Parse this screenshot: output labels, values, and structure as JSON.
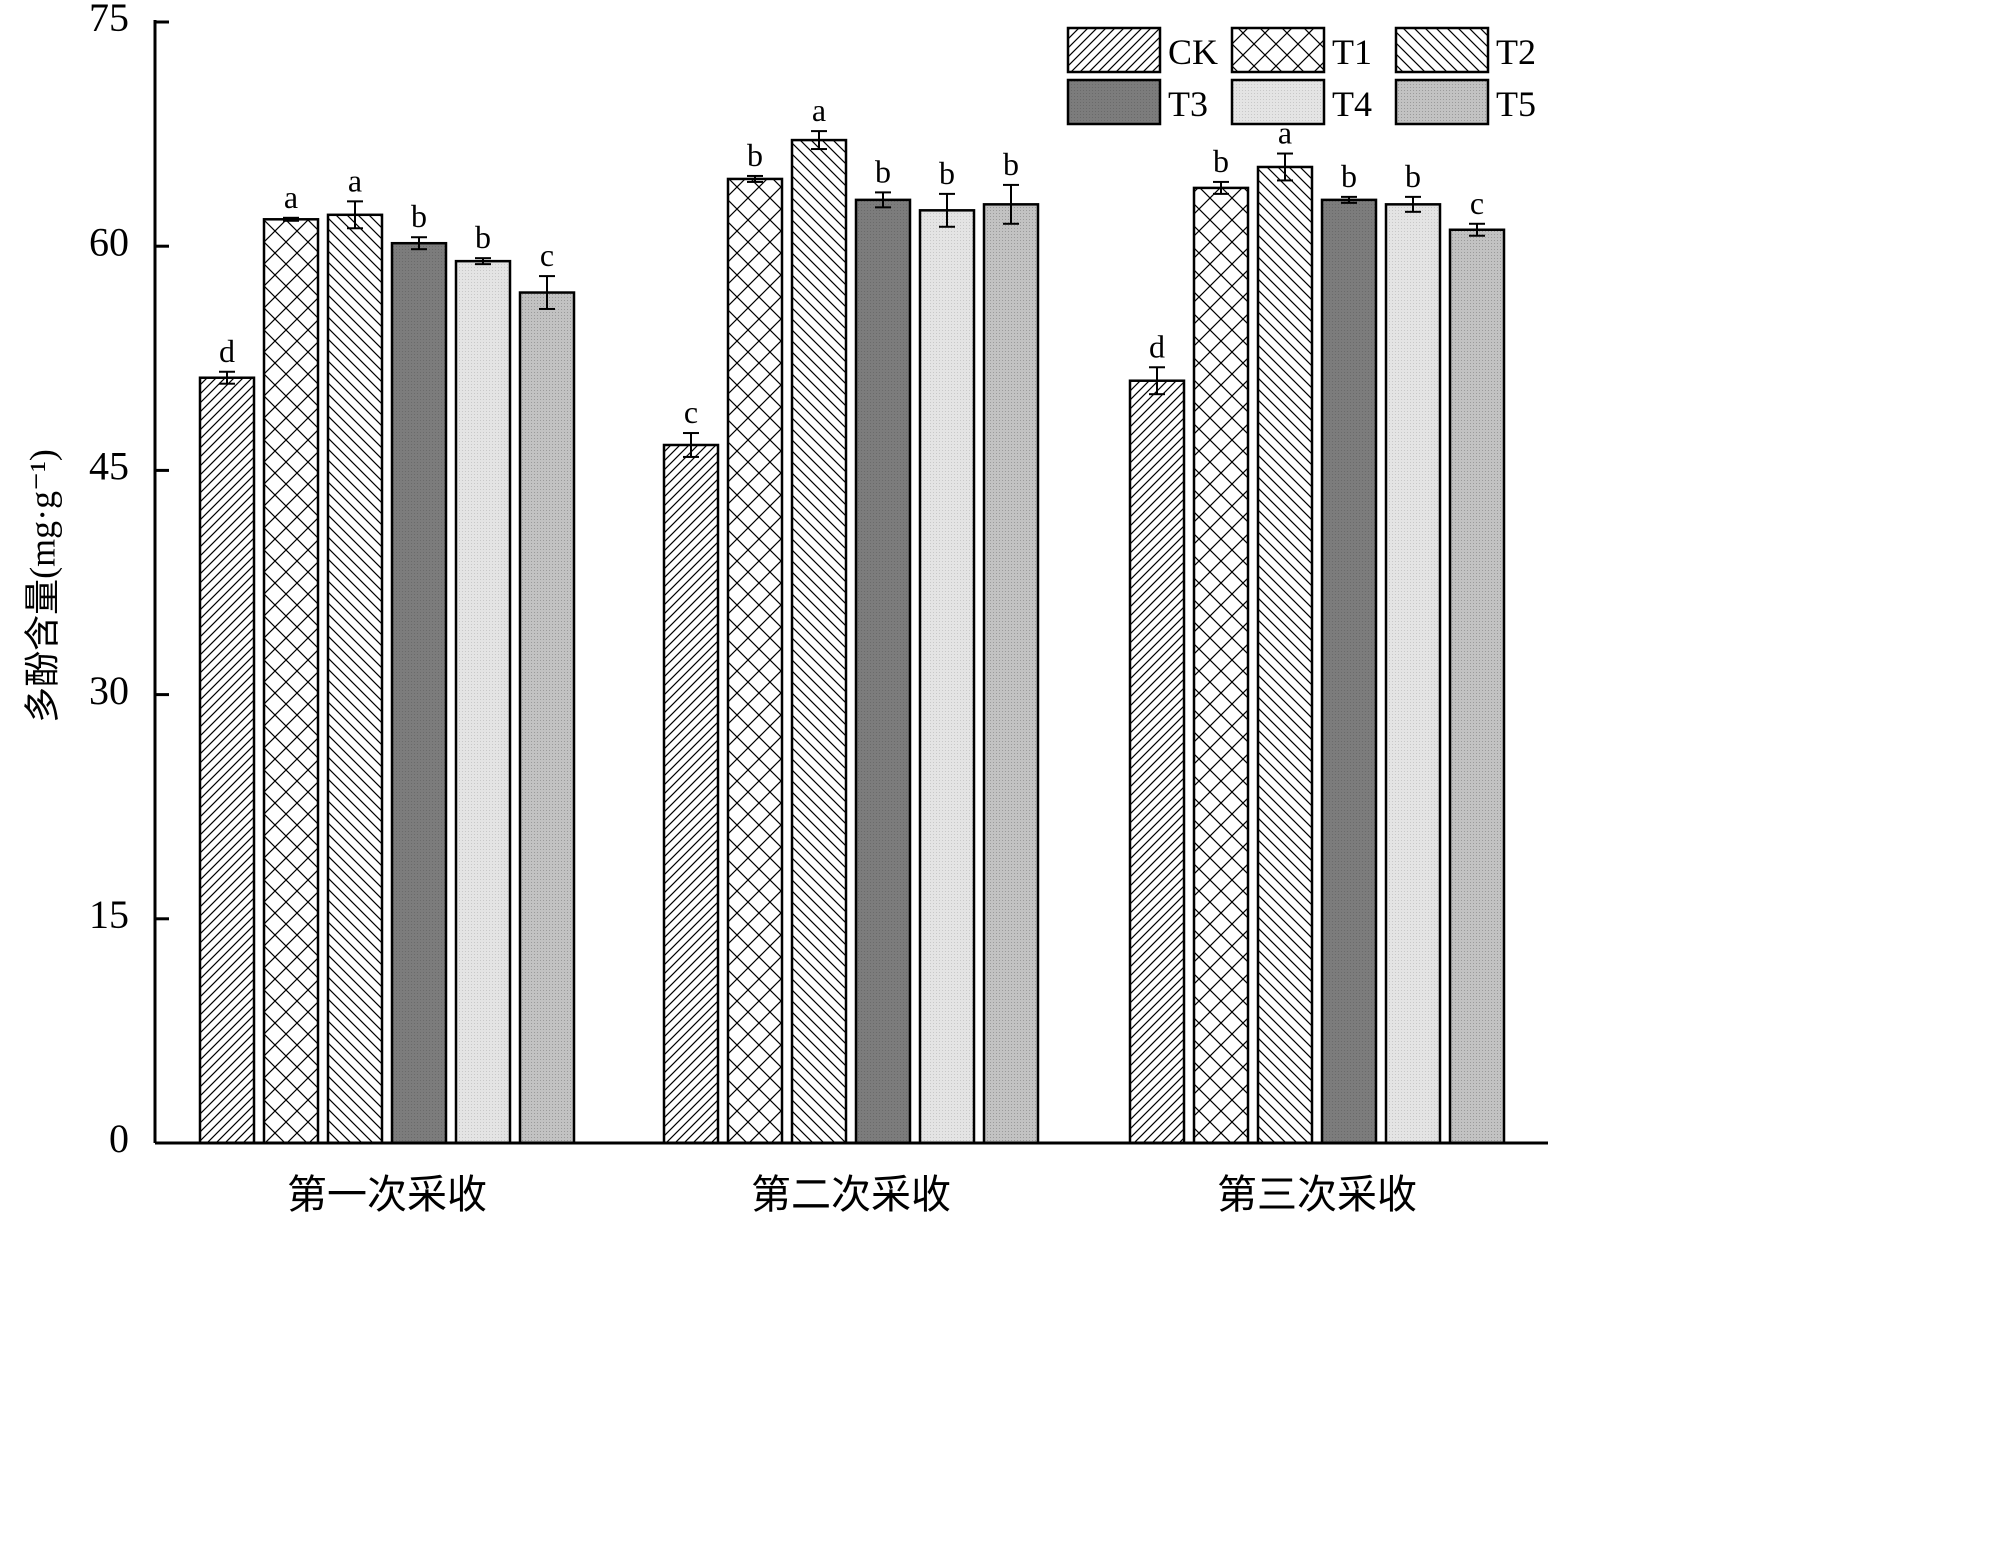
{
  "chart_data": {
    "type": "bar",
    "title": "",
    "xlabel": "",
    "ylabel": "多酚含量(mg·g⁻¹)",
    "ylim": [
      0,
      75
    ],
    "yticks": [
      0,
      15,
      30,
      45,
      60,
      75
    ],
    "tick_labels": [
      "0",
      "15",
      "30",
      "45",
      "60",
      "75"
    ],
    "grid": false,
    "legend_position": "top-right",
    "categories": [
      "第一次采收",
      "第二次采收",
      "第三次采收"
    ],
    "series": [
      {
        "name": "CK",
        "pattern": "diag-up",
        "values": [
          51.2,
          46.7,
          51.0
        ],
        "errors": [
          0.4,
          0.8,
          0.9
        ],
        "letters": [
          "d",
          "c",
          "d"
        ]
      },
      {
        "name": "T1",
        "pattern": "cross",
        "values": [
          61.8,
          64.5,
          63.9
        ],
        "errors": [
          0.1,
          0.2,
          0.4
        ],
        "letters": [
          "a",
          "b",
          "b"
        ]
      },
      {
        "name": "T2",
        "pattern": "diag-down",
        "values": [
          62.1,
          67.1,
          65.3
        ],
        "errors": [
          0.9,
          0.6,
          0.9
        ],
        "letters": [
          "a",
          "a",
          "a"
        ]
      },
      {
        "name": "T3",
        "pattern": "dark",
        "values": [
          60.2,
          63.1,
          63.1
        ],
        "errors": [
          0.4,
          0.5,
          0.2
        ],
        "letters": [
          "b",
          "b",
          "b"
        ]
      },
      {
        "name": "T4",
        "pattern": "light",
        "values": [
          59.0,
          62.4,
          62.8
        ],
        "errors": [
          0.2,
          1.1,
          0.5
        ],
        "letters": [
          "b",
          "b",
          "b"
        ]
      },
      {
        "name": "T5",
        "pattern": "medium",
        "values": [
          56.9,
          62.8,
          61.1
        ],
        "errors": [
          1.1,
          1.3,
          0.4
        ],
        "letters": [
          "c",
          "b",
          "c"
        ]
      }
    ],
    "colors": {
      "axis": "#000000",
      "dark": "#7a7a7a",
      "light": "#e2e2e2",
      "medium": "#bdbdbd",
      "hatch_bg": "#ffffff"
    }
  }
}
